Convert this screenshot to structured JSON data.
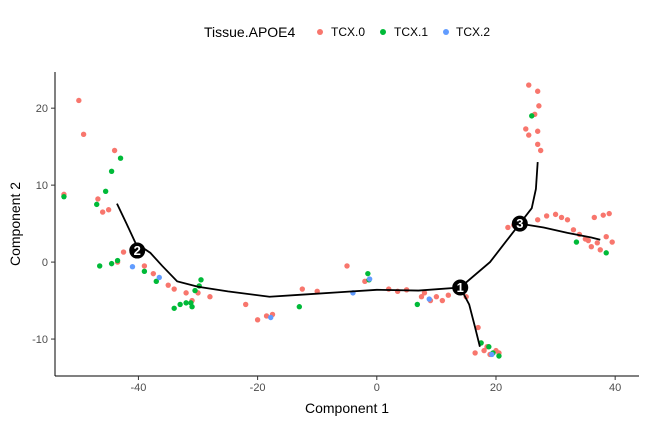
{
  "chart_data": {
    "type": "scatter",
    "xlabel": "Component 1",
    "ylabel": "Component 2",
    "xlim": [
      -54,
      44
    ],
    "ylim": [
      -14.8,
      24.7
    ],
    "x_ticks": [
      -40,
      -20,
      0,
      20,
      40
    ],
    "y_ticks": [
      -10,
      0,
      10,
      20
    ],
    "grid": false,
    "legend_position": "top",
    "legend": {
      "title": "Tissue.APOE4",
      "entries": [
        "TCX.0",
        "TCX.1",
        "TCX.2"
      ]
    },
    "colors": {
      "TCX.0": "#F8766D",
      "TCX.1": "#00BA38",
      "TCX.2": "#619CFF"
    },
    "series": [
      {
        "name": "TCX.0",
        "points": [
          [
            -50,
            21
          ],
          [
            -49.2,
            16.6
          ],
          [
            -44,
            14.5
          ],
          [
            -46.8,
            8.2
          ],
          [
            -46,
            6.5
          ],
          [
            -45,
            6.8
          ],
          [
            -52.5,
            8.8
          ],
          [
            -42.5,
            1.3
          ],
          [
            -43.5,
            0
          ],
          [
            -39,
            -0.5
          ],
          [
            -37.5,
            -1.5
          ],
          [
            -35,
            -3
          ],
          [
            -34,
            -3.5
          ],
          [
            -32,
            -4
          ],
          [
            -31,
            -5
          ],
          [
            -30,
            -4
          ],
          [
            -28,
            -4.5
          ],
          [
            -22,
            -5.5
          ],
          [
            -20,
            -7.5
          ],
          [
            -18.5,
            -7
          ],
          [
            -17.5,
            -6.8
          ],
          [
            -12.5,
            -3.5
          ],
          [
            -10,
            -3.8
          ],
          [
            -5,
            -0.5
          ],
          [
            -2,
            -2.5
          ],
          [
            2,
            -3.5
          ],
          [
            3.5,
            -3.8
          ],
          [
            5,
            -3.6
          ],
          [
            7.5,
            -4.5
          ],
          [
            8,
            -4
          ],
          [
            9,
            -5
          ],
          [
            10,
            -4.5
          ],
          [
            11,
            -5
          ],
          [
            12,
            -4.3
          ],
          [
            15,
            -4.5
          ],
          [
            17,
            -8.5
          ],
          [
            17.5,
            -10.5
          ],
          [
            18,
            -11.5
          ],
          [
            18.5,
            -11
          ],
          [
            19,
            -12
          ],
          [
            20,
            -11.5
          ],
          [
            16.5,
            -11.8
          ],
          [
            20.5,
            -11.8
          ],
          [
            25.5,
            23
          ],
          [
            27,
            22.2
          ],
          [
            27.2,
            20.3
          ],
          [
            26.5,
            19.2
          ],
          [
            25,
            17.3
          ],
          [
            25.5,
            16.5
          ],
          [
            27,
            17
          ],
          [
            27,
            15.3
          ],
          [
            27.5,
            14.5
          ],
          [
            22,
            4.5
          ],
          [
            23,
            4.8
          ],
          [
            27,
            5.5
          ],
          [
            28.5,
            6
          ],
          [
            30,
            6.2
          ],
          [
            31,
            5.8
          ],
          [
            32,
            5.5
          ],
          [
            33,
            4.2
          ],
          [
            34,
            3.6
          ],
          [
            35,
            3
          ],
          [
            36,
            2
          ],
          [
            37,
            2.5
          ],
          [
            38.5,
            3.3
          ],
          [
            39.5,
            2.6
          ],
          [
            38,
            6.1
          ],
          [
            39,
            6.3
          ],
          [
            36.5,
            5.8
          ],
          [
            37.5,
            1.6
          ],
          [
            35.5,
            2.8
          ]
        ]
      },
      {
        "name": "TCX.1",
        "points": [
          [
            -43,
            13.5
          ],
          [
            -44.5,
            11.8
          ],
          [
            -45.5,
            9.2
          ],
          [
            -52.5,
            8.5
          ],
          [
            -47,
            7.5
          ],
          [
            -46.5,
            -0.5
          ],
          [
            -44.5,
            -0.2
          ],
          [
            -43.5,
            0.2
          ],
          [
            -39,
            -1.2
          ],
          [
            -37,
            -2.5
          ],
          [
            -29.5,
            -2.3
          ],
          [
            -29.8,
            -3.1
          ],
          [
            -30.5,
            -3.7
          ],
          [
            -32,
            -5.3
          ],
          [
            -31,
            -5.8
          ],
          [
            -33,
            -5.5
          ],
          [
            -34,
            -6
          ],
          [
            -31.2,
            -5.3
          ],
          [
            -13,
            -5.8
          ],
          [
            -1.5,
            -1.5
          ],
          [
            -1.3,
            -2.3
          ],
          [
            6.8,
            -5.5
          ],
          [
            26,
            19
          ],
          [
            33.5,
            2.6
          ],
          [
            38.5,
            1.2
          ],
          [
            17.5,
            -10.5
          ],
          [
            18.8,
            -11
          ],
          [
            19.5,
            -11.8
          ],
          [
            20.5,
            -12.2
          ]
        ]
      },
      {
        "name": "TCX.2",
        "points": [
          [
            -41,
            -0.6
          ],
          [
            -36.5,
            -2
          ],
          [
            -17.8,
            -7.2
          ],
          [
            -4,
            -4
          ],
          [
            -1.2,
            -2.2
          ],
          [
            8.8,
            -4.8
          ],
          [
            19.3,
            -12
          ]
        ]
      }
    ],
    "trajectory": [
      [
        -43.6,
        7.6
      ],
      [
        -42,
        5
      ],
      [
        -40.5,
        2.5
      ],
      [
        -38,
        1.2
      ],
      [
        -36,
        -0.5
      ],
      [
        -33.5,
        -2.5
      ],
      [
        -30,
        -3.2
      ],
      [
        -25,
        -3.8
      ],
      [
        -18,
        -4.5
      ],
      [
        -12,
        -4.2
      ],
      [
        -6,
        -3.9
      ],
      [
        0,
        -3.6
      ],
      [
        7,
        -3.7
      ],
      [
        14,
        -3.3
      ],
      [
        19,
        0
      ],
      [
        21.5,
        2.5
      ],
      [
        24,
        5
      ],
      [
        26,
        7
      ],
      [
        26.7,
        9.5
      ],
      [
        27,
        13
      ]
    ],
    "branches": [
      {
        "path": [
          [
            14,
            -3.3
          ],
          [
            15.5,
            -5.5
          ],
          [
            16.5,
            -8.5
          ],
          [
            17.3,
            -11
          ]
        ]
      },
      {
        "path": [
          [
            24,
            5
          ],
          [
            28,
            4.5
          ],
          [
            32,
            3.8
          ],
          [
            36,
            3.2
          ],
          [
            37.5,
            2.9
          ]
        ]
      }
    ],
    "branch_points": [
      {
        "label": "1",
        "x": 14,
        "y": -3.3
      },
      {
        "label": "2",
        "x": -40.2,
        "y": 1.5
      },
      {
        "label": "3",
        "x": 24,
        "y": 5
      }
    ]
  }
}
